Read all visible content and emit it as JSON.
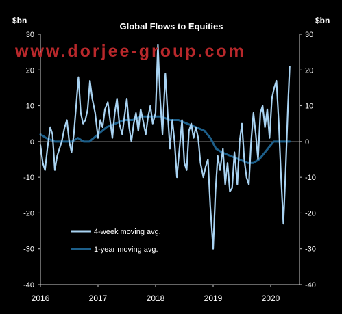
{
  "chart_data": {
    "type": "line",
    "title": "Global Flows to Equities",
    "ylabel_left": "$bn",
    "ylabel_right": "$bn",
    "ylim": [
      -40,
      30
    ],
    "y_ticks": [
      "30",
      "20",
      "10",
      "0",
      "-10",
      "-20",
      "-30",
      "-40"
    ],
    "x_ticks": [
      "2016",
      "2017",
      "2018",
      "2019",
      "2020"
    ],
    "xlim": [
      2016.0,
      2020.5
    ],
    "legend_position": "bottom-left",
    "series": [
      {
        "name": "4-week moving avg.",
        "color": "#a9d3f2",
        "points": [
          [
            2016.0,
            -1
          ],
          [
            2016.04,
            -6
          ],
          [
            2016.08,
            -8
          ],
          [
            2016.12,
            -2
          ],
          [
            2016.17,
            4
          ],
          [
            2016.21,
            2
          ],
          [
            2016.25,
            -8
          ],
          [
            2016.29,
            -4
          ],
          [
            2016.33,
            -2
          ],
          [
            2016.37,
            0
          ],
          [
            2016.42,
            4
          ],
          [
            2016.46,
            6
          ],
          [
            2016.5,
            0
          ],
          [
            2016.54,
            -3
          ],
          [
            2016.58,
            2
          ],
          [
            2016.62,
            10
          ],
          [
            2016.66,
            18
          ],
          [
            2016.7,
            8
          ],
          [
            2016.74,
            5
          ],
          [
            2016.78,
            6
          ],
          [
            2016.82,
            9
          ],
          [
            2016.86,
            17
          ],
          [
            2016.9,
            12
          ],
          [
            2016.95,
            8
          ],
          [
            2017.0,
            1
          ],
          [
            2017.04,
            6
          ],
          [
            2017.08,
            4
          ],
          [
            2017.12,
            9
          ],
          [
            2017.17,
            11
          ],
          [
            2017.21,
            6
          ],
          [
            2017.25,
            1
          ],
          [
            2017.29,
            8
          ],
          [
            2017.33,
            12
          ],
          [
            2017.37,
            5
          ],
          [
            2017.42,
            2
          ],
          [
            2017.46,
            7
          ],
          [
            2017.5,
            12
          ],
          [
            2017.54,
            4
          ],
          [
            2017.58,
            0
          ],
          [
            2017.62,
            5
          ],
          [
            2017.66,
            8
          ],
          [
            2017.7,
            3
          ],
          [
            2017.74,
            9
          ],
          [
            2017.78,
            6
          ],
          [
            2017.83,
            2
          ],
          [
            2017.87,
            7
          ],
          [
            2017.91,
            10
          ],
          [
            2017.95,
            5
          ],
          [
            2018.0,
            8
          ],
          [
            2018.04,
            27
          ],
          [
            2018.08,
            12
          ],
          [
            2018.12,
            2
          ],
          [
            2018.17,
            19
          ],
          [
            2018.21,
            8
          ],
          [
            2018.25,
            -2
          ],
          [
            2018.29,
            6
          ],
          [
            2018.33,
            0
          ],
          [
            2018.37,
            -10
          ],
          [
            2018.42,
            -1
          ],
          [
            2018.46,
            6
          ],
          [
            2018.5,
            -6
          ],
          [
            2018.54,
            -8
          ],
          [
            2018.58,
            3
          ],
          [
            2018.62,
            5
          ],
          [
            2018.66,
            1
          ],
          [
            2018.7,
            4
          ],
          [
            2018.74,
            1
          ],
          [
            2018.78,
            -6
          ],
          [
            2018.83,
            -10
          ],
          [
            2018.87,
            -7
          ],
          [
            2018.91,
            -5
          ],
          [
            2018.95,
            -18
          ],
          [
            2019.0,
            -30
          ],
          [
            2019.04,
            -14
          ],
          [
            2019.08,
            -4
          ],
          [
            2019.12,
            -8
          ],
          [
            2019.17,
            -2
          ],
          [
            2019.21,
            -12
          ],
          [
            2019.25,
            -6
          ],
          [
            2019.29,
            -14
          ],
          [
            2019.33,
            -13
          ],
          [
            2019.37,
            -3
          ],
          [
            2019.42,
            -12
          ],
          [
            2019.46,
            0
          ],
          [
            2019.5,
            5
          ],
          [
            2019.54,
            -5
          ],
          [
            2019.58,
            -10
          ],
          [
            2019.62,
            -12
          ],
          [
            2019.66,
            0
          ],
          [
            2019.7,
            8
          ],
          [
            2019.74,
            2
          ],
          [
            2019.78,
            -5
          ],
          [
            2019.82,
            8
          ],
          [
            2019.86,
            10
          ],
          [
            2019.9,
            4
          ],
          [
            2019.94,
            9
          ],
          [
            2019.98,
            1
          ],
          [
            2020.02,
            12
          ],
          [
            2020.06,
            15
          ],
          [
            2020.1,
            17
          ],
          [
            2020.14,
            5
          ],
          [
            2020.18,
            -10
          ],
          [
            2020.22,
            -23
          ],
          [
            2020.26,
            -8
          ],
          [
            2020.3,
            10
          ],
          [
            2020.33,
            21
          ]
        ]
      },
      {
        "name": "1-year moving avg.",
        "color": "#1d5f8a",
        "points": [
          [
            2016.0,
            2
          ],
          [
            2016.1,
            1
          ],
          [
            2016.25,
            0
          ],
          [
            2016.4,
            0
          ],
          [
            2016.55,
            0
          ],
          [
            2016.65,
            1
          ],
          [
            2016.75,
            0
          ],
          [
            2016.85,
            0
          ],
          [
            2017.0,
            2
          ],
          [
            2017.15,
            4
          ],
          [
            2017.3,
            5
          ],
          [
            2017.45,
            6
          ],
          [
            2017.6,
            6
          ],
          [
            2017.75,
            7
          ],
          [
            2017.9,
            7
          ],
          [
            2018.0,
            7
          ],
          [
            2018.1,
            7
          ],
          [
            2018.25,
            6
          ],
          [
            2018.4,
            6
          ],
          [
            2018.55,
            5
          ],
          [
            2018.7,
            4
          ],
          [
            2018.85,
            3
          ],
          [
            2018.95,
            1
          ],
          [
            2019.05,
            -2
          ],
          [
            2019.15,
            -3
          ],
          [
            2019.3,
            -4
          ],
          [
            2019.45,
            -5
          ],
          [
            2019.6,
            -6
          ],
          [
            2019.7,
            -6
          ],
          [
            2019.8,
            -5
          ],
          [
            2019.95,
            -2
          ],
          [
            2020.05,
            0
          ],
          [
            2020.15,
            0
          ],
          [
            2020.25,
            0
          ],
          [
            2020.33,
            0
          ]
        ]
      }
    ]
  },
  "watermark": "www.dorjee-group.com"
}
